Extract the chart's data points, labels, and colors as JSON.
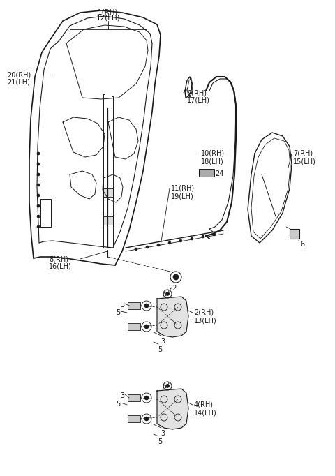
{
  "bg_color": "#ffffff",
  "line_color": "#1a1a1a",
  "text_color": "#1a1a1a",
  "fig_w": 4.8,
  "fig_h": 6.82,
  "dpi": 100,
  "xlim": [
    0,
    480
  ],
  "ylim": [
    0,
    682
  ]
}
